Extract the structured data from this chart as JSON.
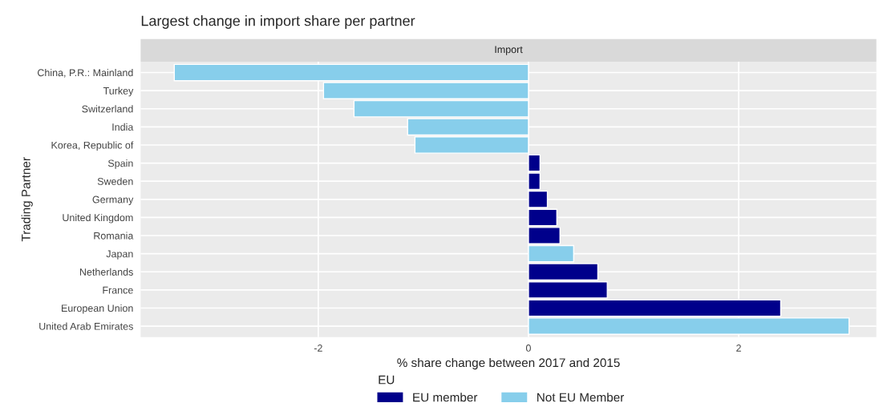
{
  "chart_data": {
    "type": "bar",
    "orientation": "horizontal",
    "title": "Largest change in import share per partner",
    "subtitle": "Import",
    "xlabel": "% share change between 2017 and 2015",
    "ylabel": "Trading Partner",
    "legend_title": "EU",
    "categories": [
      "China, P.R.: Mainland",
      "Turkey",
      "Switzerland",
      "India",
      "Korea, Republic of",
      "Spain",
      "Sweden",
      "Germany",
      "United Kingdom",
      "Romania",
      "Japan",
      "Netherlands",
      "France",
      "European Union",
      "United Arab Emirates"
    ],
    "series": [
      {
        "name": "EU member",
        "color": "#00008b",
        "values": [
          null,
          null,
          null,
          null,
          null,
          0.11,
          0.11,
          0.18,
          0.27,
          0.3,
          null,
          0.66,
          0.75,
          2.4,
          null
        ]
      },
      {
        "name": "Not EU Member",
        "color": "#87ceeb",
        "values": [
          -3.37,
          -1.95,
          -1.66,
          -1.15,
          -1.08,
          null,
          null,
          null,
          null,
          null,
          0.43,
          null,
          null,
          null,
          3.05
        ]
      }
    ],
    "xlim": [
      -3.69,
      3.31
    ],
    "xticks": [
      -2,
      0,
      2
    ],
    "grid": true,
    "legend": "bottom"
  }
}
